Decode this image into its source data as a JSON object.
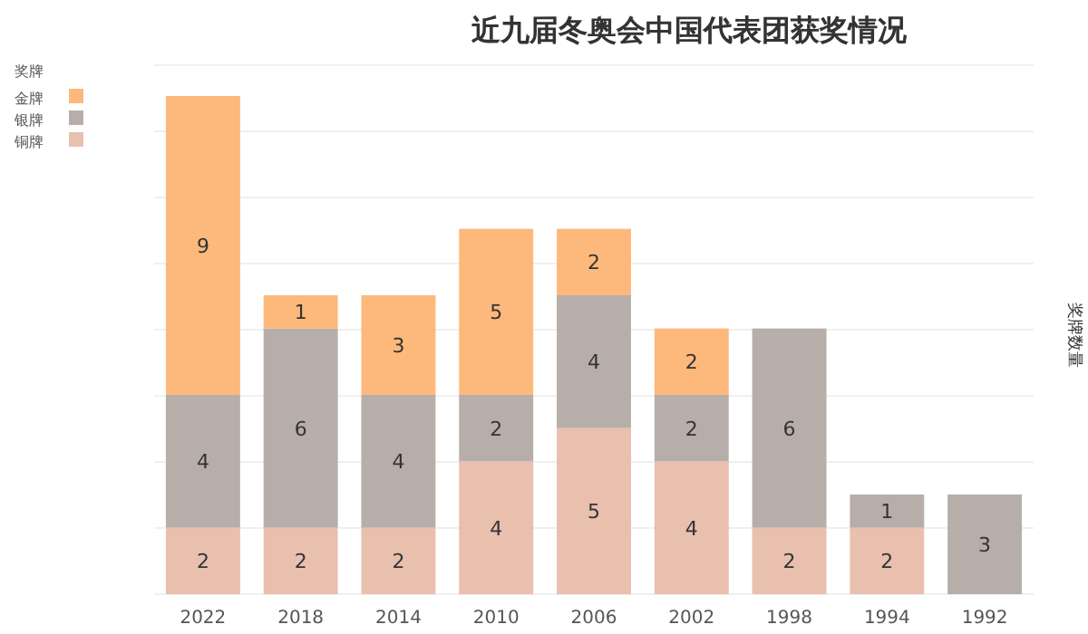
{
  "chart_data": {
    "type": "bar",
    "title": "近九届冬奥会中国代表团获奖情况",
    "ylabel": "奖牌数量",
    "legend_title": "奖牌",
    "categories": [
      "2022",
      "2018",
      "2014",
      "2010",
      "2006",
      "2002",
      "1998",
      "1994",
      "1992"
    ],
    "stacked": true,
    "data_labels": true,
    "legend": "top left",
    "grid": "y",
    "series": [
      {
        "name": "铜牌",
        "color": "#e9bfae",
        "values": [
          2,
          2,
          2,
          4,
          5,
          4,
          2,
          2,
          null
        ]
      },
      {
        "name": "银牌",
        "color": "#b8aea9",
        "values": [
          4,
          6,
          4,
          2,
          4,
          2,
          6,
          1,
          3
        ]
      },
      {
        "name": "金牌",
        "color": "#fdb97c",
        "values": [
          9,
          1,
          3,
          5,
          2,
          2,
          null,
          null,
          null
        ]
      }
    ]
  }
}
